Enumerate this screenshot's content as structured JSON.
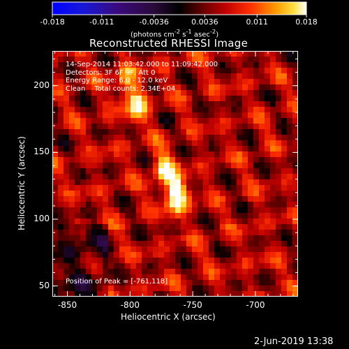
{
  "colorbar": {
    "ticks": [
      "-0.018",
      "-0.011",
      "-0.0036",
      "0.0036",
      "0.011",
      "0.018"
    ],
    "tick_values": [
      -0.018,
      -0.011,
      -0.0036,
      0.0036,
      0.011,
      0.018
    ],
    "units_html": "(photons cm<sup>-2</sup> s<sup>-1</sup> asec<sup>-2</sup>)"
  },
  "title": "Reconstructed RHESSI Image",
  "info": {
    "line1": "14-Sep-2014 11:03:42.000 to 11:09:42.000",
    "line2": "Detectors: 3F 6F 9F, Att 0",
    "line3": "Energy Range: 6.0 - 12.0 keV",
    "line4": "Clean    Total counts: 2.34E+04",
    "peak": "Position of Peak = [-761,118]"
  },
  "chart_data": {
    "type": "heatmap",
    "title": "Reconstructed RHESSI Image",
    "xlabel": "Heliocentric X (arcsec)",
    "ylabel": "Heliocentric Y (arcsec)",
    "xlim": [
      -862,
      -666
    ],
    "ylim": [
      42,
      226
    ],
    "x_ticks": [
      -850,
      -800,
      -750,
      -700
    ],
    "y_ticks": [
      50,
      100,
      150,
      200
    ],
    "x_tick_labels": [
      "-850",
      "-800",
      "-750",
      "-700"
    ],
    "y_tick_labels": [
      "50",
      "100",
      "150",
      "200"
    ],
    "colormap": "hot (blue-purple for negatives)",
    "value_range": [
      -0.018,
      0.018
    ],
    "peak_position": [
      -761,
      118
    ],
    "sources": [
      {
        "x": -763,
        "y": 118,
        "value": 0.018
      },
      {
        "x": -773,
        "y": 138,
        "value": 0.012
      },
      {
        "x": -795,
        "y": 186,
        "value": 0.012
      },
      {
        "x": -803,
        "y": 205,
        "value": 0.008
      }
    ]
  },
  "footer": {
    "date": "2-Jun-2019 13:38"
  }
}
